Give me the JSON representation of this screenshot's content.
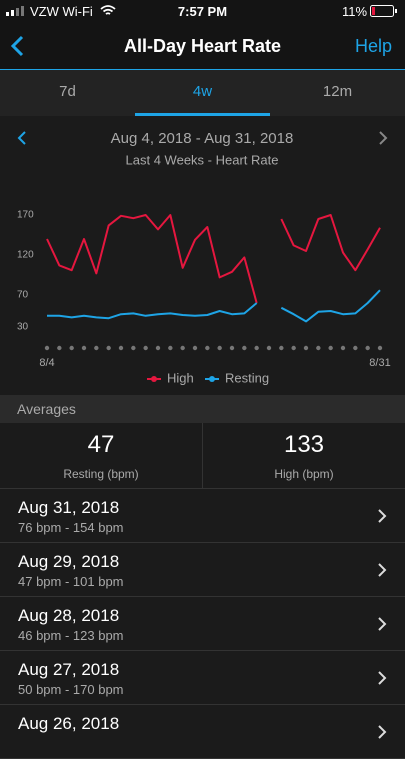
{
  "status_bar": {
    "carrier": "VZW Wi-Fi",
    "time": "7:57 PM",
    "battery": "11%"
  },
  "nav": {
    "title": "All-Day Heart Rate",
    "action": "Help"
  },
  "tabs": [
    "7d",
    "4w",
    "12m"
  ],
  "chart_data": {
    "type": "line",
    "title": "Aug 4, 2018 - Aug 31, 2018",
    "subtitle": "Last 4 Weeks - Heart Rate",
    "categories": [
      "8/4",
      null,
      null,
      null,
      null,
      null,
      null,
      null,
      null,
      null,
      null,
      null,
      null,
      null,
      null,
      null,
      null,
      null,
      null,
      null,
      null,
      null,
      null,
      null,
      null,
      null,
      null,
      "8/31"
    ],
    "series": [
      {
        "name": "High",
        "color": "#e5173f",
        "values": [
          140,
          107,
          101,
          140,
          97,
          157,
          169,
          166,
          170,
          152,
          170,
          104,
          139,
          155,
          92,
          99,
          117,
          60,
          null,
          165,
          132,
          125,
          165,
          170,
          123,
          101,
          127,
          154
        ]
      },
      {
        "name": "Resting",
        "color": "#1ea4e6",
        "values": [
          44,
          44,
          42,
          44,
          42,
          41,
          46,
          47,
          44,
          46,
          47,
          45,
          44,
          45,
          50,
          46,
          47,
          60,
          null,
          54,
          46,
          37,
          49,
          50,
          46,
          47,
          60,
          76
        ]
      }
    ],
    "ylim": [
      20,
      180
    ],
    "yticks": [
      30,
      70,
      120,
      170
    ],
    "grid": false,
    "legend": "bottom"
  },
  "averages": {
    "title": "Averages",
    "items": [
      {
        "value": 47,
        "label": "Resting (bpm)"
      },
      {
        "value": 133,
        "label": "High (bpm)"
      }
    ]
  },
  "days": [
    {
      "date": "Aug 31, 2018",
      "range": "76 bpm - 154 bpm"
    },
    {
      "date": "Aug 29, 2018",
      "range": "47 bpm - 101 bpm"
    },
    {
      "date": "Aug 28, 2018",
      "range": "46 bpm - 123 bpm"
    },
    {
      "date": "Aug 27, 2018",
      "range": "50 bpm - 170 bpm"
    },
    {
      "date": "Aug 26, 2018",
      "range": ""
    }
  ]
}
